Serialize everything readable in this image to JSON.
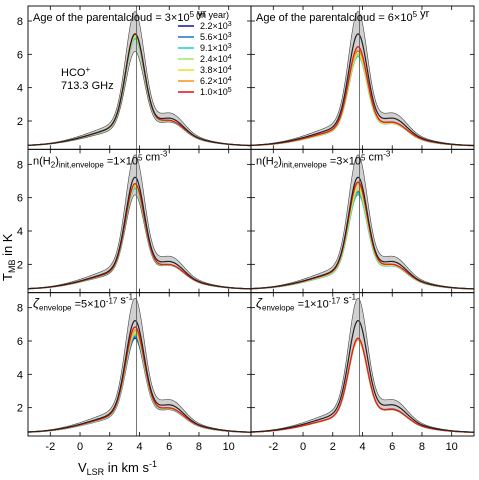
{
  "chart_data": {
    "type": "line",
    "layout": "3x2 grid of panels with shared axes",
    "ylabel": "T",
    "ylabel_sub": "MB",
    "ylabel_suffix": " in K",
    "xlabel": "V",
    "xlabel_sub": "LSR",
    "xlabel_suffix": " in km s",
    "xlabel_sup": "-1",
    "xlim": [
      -3.5,
      11.5
    ],
    "ylim": [
      0.3,
      8.9
    ],
    "xticks": [
      -2,
      0,
      2,
      4,
      6,
      8,
      10
    ],
    "yticks": [
      2,
      4,
      6,
      8
    ],
    "vertical_line_x": 3.8,
    "line_note": {
      "text": "HCO",
      "sup": "+",
      "freq": "713.3 GHz"
    },
    "legend": {
      "title": "(in year)",
      "placement": "top-right of first panel"
    },
    "observation": {
      "name": "",
      "color": "#222222",
      "band_color": "#d0d0d0",
      "peak": 7.5,
      "band_lo": 6.4,
      "band_hi": 8.9
    },
    "series": [
      {
        "name": "2.2×10^3",
        "label_main": "2.2×10",
        "label_sup": "3",
        "color": "#1f1fb4"
      },
      {
        "name": "5.6×10^3",
        "label_main": "5.6×10",
        "label_sup": "3",
        "color": "#2b7bd8"
      },
      {
        "name": "9.1×10^3",
        "label_main": "9.1×10",
        "label_sup": "3",
        "color": "#22d3c8"
      },
      {
        "name": "2.4×10^4",
        "label_main": "2.4×10",
        "label_sup": "4",
        "color": "#a8e86e"
      },
      {
        "name": "3.8×10^4",
        "label_main": "3.8×10",
        "label_sup": "4",
        "color": "#f2e02a"
      },
      {
        "name": "6.2×10^4",
        "label_main": "6.2×10",
        "label_sup": "4",
        "color": "#f59a2a"
      },
      {
        "name": "1.0×10^5",
        "label_main": "1.0×10",
        "label_sup": "5",
        "color": "#e02020"
      }
    ],
    "panels": [
      {
        "id": "age-3e5",
        "label_lines": [
          [
            "Age of the parental"
          ],
          [
            "cloud = 3×10",
            "5",
            " yr"
          ]
        ],
        "peaks": [
          7.3,
          7.3,
          7.2,
          7.3,
          7.4,
          7.5,
          7.5
        ]
      },
      {
        "id": "age-6e5",
        "label_lines": [
          [
            "Age of the parental"
          ],
          [
            "cloud = 6×10",
            "5",
            " yr"
          ]
        ],
        "peaks": [
          6.2,
          6.2,
          6.1,
          6.2,
          6.3,
          6.5,
          6.7
        ]
      },
      {
        "id": "nh2-1e5",
        "label_lines": [
          [
            "n(H",
            "",
            ")",
            "init,envelope",
            " ="
          ],
          [
            "1×10",
            "5",
            " cm",
            "-3"
          ]
        ],
        "peaks": [
          6.9,
          6.9,
          6.8,
          6.9,
          7.0,
          7.1,
          7.1
        ]
      },
      {
        "id": "nh2-3e5",
        "label_lines": [
          [
            "n(H",
            "",
            ")",
            "init,envelope",
            " ="
          ],
          [
            "3×10",
            "5",
            " cm",
            "-3"
          ]
        ],
        "peaks": [
          6.6,
          6.6,
          6.5,
          6.7,
          6.9,
          7.1,
          7.2
        ]
      },
      {
        "id": "zeta-5e-17",
        "label_lines": [
          [
            "ζ",
            "envelope",
            " ="
          ],
          [
            "5×10",
            "-17",
            " s",
            "-1"
          ]
        ],
        "peaks": [
          6.4,
          6.5,
          6.6,
          6.7,
          6.8,
          6.9,
          7.1
        ]
      },
      {
        "id": "zeta-1e-17",
        "label_lines": [
          [
            "ζ",
            "envelope",
            " ="
          ],
          [
            "1×10",
            "-17",
            " s",
            "-1"
          ]
        ],
        "peaks": [
          6.3,
          6.3,
          6.3,
          6.3,
          6.3,
          6.3,
          6.4
        ]
      }
    ]
  }
}
